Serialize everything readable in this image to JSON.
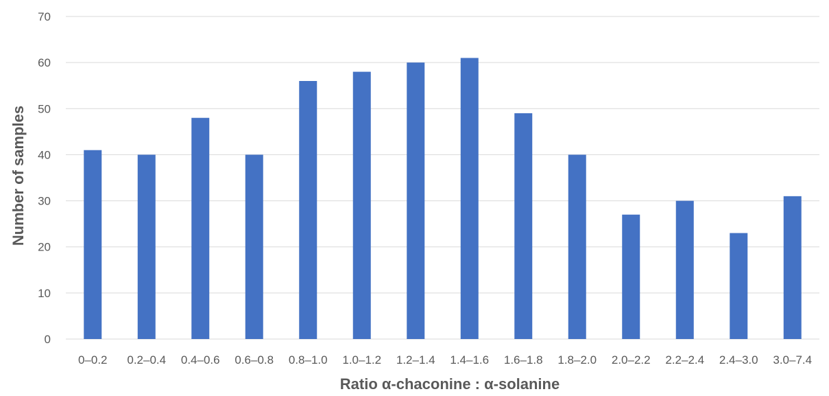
{
  "chart_data": {
    "type": "bar",
    "categories": [
      "0–0.2",
      "0.2–0.4",
      "0.4–0.6",
      "0.6–0.8",
      "0.8–1.0",
      "1.0–1.2",
      "1.2–1.4",
      "1.4–1.6",
      "1.6–1.8",
      "1.8–2.0",
      "2.0–2.2",
      "2.2–2.4",
      "2.4–3.0",
      "3.0–7.4"
    ],
    "values": [
      41,
      40,
      48,
      40,
      56,
      58,
      60,
      61,
      49,
      40,
      27,
      30,
      23,
      31
    ],
    "title": "",
    "xlabel": "Ratio α-chaconine : α-solanine",
    "ylabel": "Number of samples",
    "ylim": [
      0,
      70
    ],
    "yticks": [
      0,
      10,
      20,
      30,
      40,
      50,
      60,
      70
    ],
    "grid": true,
    "bar_color": "#4472c4"
  }
}
